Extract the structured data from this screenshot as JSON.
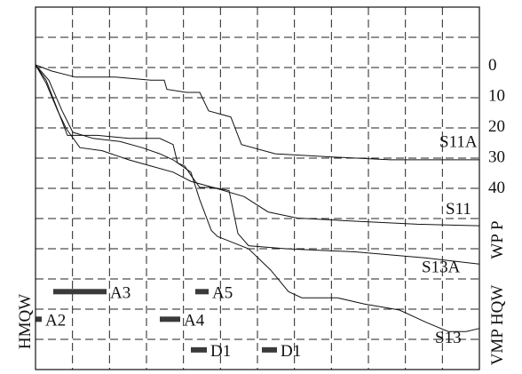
{
  "chart_data": {
    "type": "line",
    "xlim": [
      0,
      500
    ],
    "ylim": [
      0,
      100
    ],
    "grid": true,
    "y_ticks": [
      {
        "value": 0,
        "label": "0"
      },
      {
        "value": 10,
        "label": "10"
      },
      {
        "value": 20,
        "label": "20"
      },
      {
        "value": 30,
        "label": "30"
      },
      {
        "value": 40,
        "label": "40"
      }
    ],
    "series": [
      {
        "name": "S11A",
        "label_at": {
          "x": 455,
          "y": 25
        },
        "points": [
          [
            0,
            0
          ],
          [
            18,
            2
          ],
          [
            45,
            4
          ],
          [
            90,
            4
          ],
          [
            130,
            5
          ],
          [
            145,
            5
          ],
          [
            148,
            8
          ],
          [
            170,
            9
          ],
          [
            185,
            9
          ],
          [
            195,
            15
          ],
          [
            220,
            17
          ],
          [
            232,
            26
          ],
          [
            270,
            29
          ],
          [
            330,
            30
          ],
          [
            400,
            31
          ],
          [
            500,
            31
          ]
        ]
      },
      {
        "name": "S11",
        "label_at": {
          "x": 462,
          "y": 47
        },
        "points": [
          [
            0,
            0
          ],
          [
            12,
            6
          ],
          [
            25,
            15
          ],
          [
            35,
            21
          ],
          [
            50,
            27
          ],
          [
            75,
            28
          ],
          [
            105,
            31
          ],
          [
            130,
            33
          ],
          [
            155,
            35
          ],
          [
            175,
            38
          ],
          [
            200,
            40
          ],
          [
            235,
            43
          ],
          [
            262,
            48
          ],
          [
            295,
            50
          ],
          [
            360,
            51
          ],
          [
            430,
            52
          ],
          [
            500,
            52.5
          ]
        ]
      },
      {
        "name": "S13A",
        "label_at": {
          "x": 435,
          "y": 66
        },
        "points": [
          [
            0,
            0
          ],
          [
            12,
            5
          ],
          [
            28,
            17
          ],
          [
            36,
            23
          ],
          [
            45,
            23
          ],
          [
            70,
            23
          ],
          [
            105,
            24
          ],
          [
            140,
            24
          ],
          [
            155,
            26
          ],
          [
            160,
            32
          ],
          [
            168,
            33
          ],
          [
            175,
            36
          ],
          [
            185,
            40
          ],
          [
            200,
            40
          ],
          [
            218,
            41
          ],
          [
            228,
            55
          ],
          [
            240,
            59
          ],
          [
            282,
            60
          ],
          [
            360,
            61
          ],
          [
            440,
            63
          ],
          [
            500,
            65
          ]
        ]
      },
      {
        "name": "S13",
        "label_at": {
          "x": 450,
          "y": 89
        },
        "points": [
          [
            0,
            0
          ],
          [
            15,
            5
          ],
          [
            30,
            15
          ],
          [
            42,
            22
          ],
          [
            65,
            24
          ],
          [
            95,
            25
          ],
          [
            120,
            27
          ],
          [
            140,
            29
          ],
          [
            155,
            31
          ],
          [
            175,
            35
          ],
          [
            185,
            44
          ],
          [
            198,
            54
          ],
          [
            205,
            56
          ],
          [
            240,
            60
          ],
          [
            265,
            67
          ],
          [
            285,
            74
          ],
          [
            300,
            76
          ],
          [
            340,
            76
          ],
          [
            370,
            78
          ],
          [
            410,
            80
          ],
          [
            440,
            84
          ],
          [
            465,
            87
          ],
          [
            485,
            87
          ],
          [
            500,
            86
          ]
        ]
      }
    ],
    "bars": [
      {
        "label": "A3",
        "start": 20,
        "end": 80,
        "level": 74
      },
      {
        "label": "A5",
        "start": 180,
        "end": 195,
        "level": 74
      },
      {
        "label": "A2",
        "start": 0,
        "end": 7,
        "level": 83
      },
      {
        "label": "A4",
        "start": 140,
        "end": 163,
        "level": 83
      },
      {
        "label": "D1",
        "start": 175,
        "end": 193,
        "level": 93
      },
      {
        "label": "D1",
        "start": 255,
        "end": 272,
        "level": 93
      }
    ],
    "axis_marks": {
      "left": "HMQW",
      "right_top": "WP P",
      "right_bottom": "VMP HQW"
    }
  }
}
